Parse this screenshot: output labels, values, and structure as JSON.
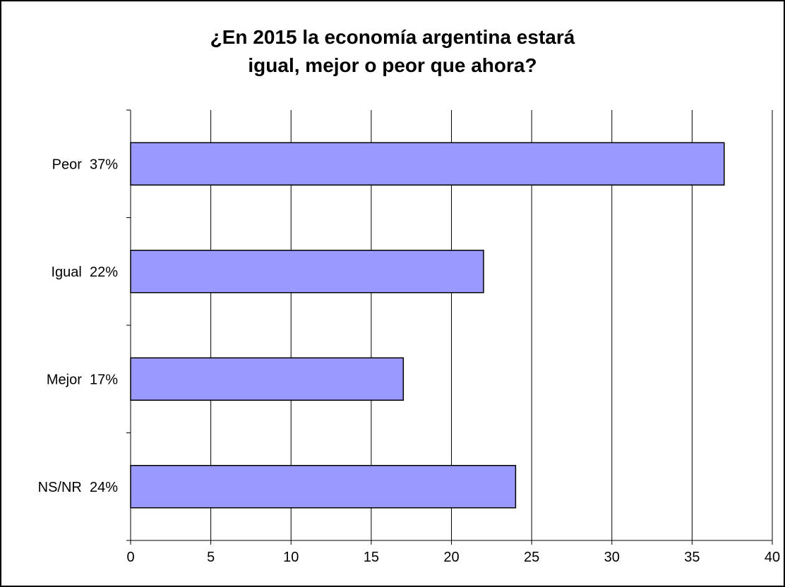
{
  "chart_data": {
    "type": "bar",
    "orientation": "horizontal",
    "title": "¿En 2015 la economía argentina estará igual, mejor o peor que ahora?",
    "categories": [
      "Peor  37%",
      "Igual  22%",
      "Mejor  17%",
      "NS/NR  24%"
    ],
    "values": [
      37,
      22,
      17,
      24
    ],
    "xlabel": "",
    "ylabel": "",
    "xlim": [
      0,
      40
    ],
    "xticks": [
      0,
      5,
      10,
      15,
      20,
      25,
      30,
      35,
      40
    ],
    "grid": "vertical",
    "legend": "none",
    "bar_color": "#9999ff",
    "bar_edge_color": "#000000"
  }
}
